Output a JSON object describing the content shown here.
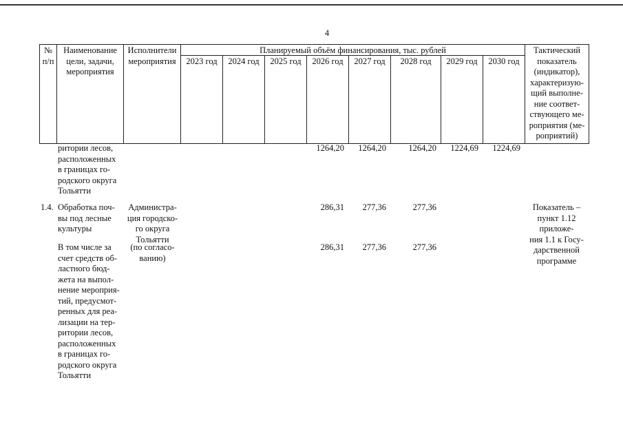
{
  "page_number": "4",
  "table": {
    "header": {
      "no": "№\nп/п",
      "name": "Наименование\nцели, задачи,\nмероприятия",
      "executors": "Исполнители\nмероприятия",
      "funding": "Планируемый объём финансирования, тыс. рублей",
      "years": [
        "2023 год",
        "2024 год",
        "2025 год",
        "2026 год",
        "2027 год",
        "2028 год",
        "2029 год",
        "2030 год"
      ],
      "indicator": "Тактический\nпоказатель\n(индикатор),\nхарактеризую-\nщий выполне-\nние соответ-\nствующего ме-\nроприятия (ме-\nроприятий)"
    },
    "rows": [
      {
        "name": "ритории лесов,\nрасположенных\nв границах го-\nродского округа\nТольятти",
        "values": [
          null,
          null,
          null,
          "1264,20",
          "1264,20",
          "1264,20",
          "1224,69",
          "1224,69"
        ]
      },
      {
        "no": "1.4.",
        "name": "Обработка поч-\nвы под лесные\nкультуры",
        "executors": "Администра-\nция городско-\nго округа\nТольятти",
        "values": [
          null,
          null,
          null,
          "286,31",
          "277,36",
          "277,36",
          null,
          null
        ],
        "indicator": "Показатель –\nпункт 1.12\nприложе-\nния 1.1 к Госу-\nдарственной\nпрограмме"
      },
      {
        "name": "В том числе за\nсчет средств об-\nластного бюд-\nжета на выпол-\nнение мероприя-\nтий, предусмот-\nренных для реа-\nлизации на тер-\nритории лесов,\nрасположенных\nв границах го-\nродского округа\nТольятти",
        "executors": "(по согласо-\nванию)",
        "values": [
          null,
          null,
          null,
          "286,31",
          "277,36",
          "277,36",
          null,
          null
        ]
      }
    ]
  }
}
